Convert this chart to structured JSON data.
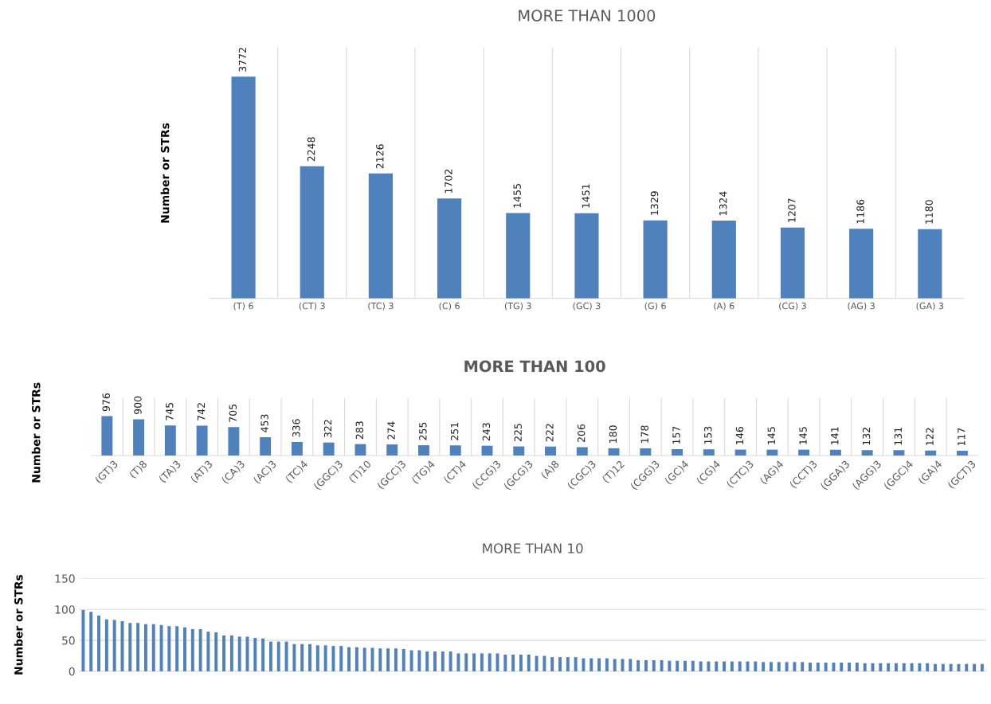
{
  "chart_data": [
    {
      "type": "bar",
      "title": "MORE THAN 1000",
      "ylabel": "Number or STRs",
      "categories": [
        "(T) 6",
        "(CT) 3",
        "(TC) 3",
        "(C) 6",
        "(TG) 3",
        "(GC) 3",
        "(G) 6",
        "(A) 6",
        "(CG) 3",
        "(AG) 3",
        "(GA) 3"
      ],
      "values": [
        3772,
        2248,
        2126,
        1702,
        1455,
        1451,
        1329,
        1324,
        1207,
        1186,
        1180
      ],
      "color": "#4f81bd",
      "data_labels": true,
      "grid": "x",
      "tick_labels": "x"
    },
    {
      "type": "bar",
      "title": "MORE THAN 100",
      "ylabel": "Number or STRs",
      "categories": [
        "(GT)3",
        "(T)8",
        "(TA)3",
        "(AT)3",
        "(CA)3",
        "(AC)3",
        "(TC)4",
        "(GGC)3",
        "(T)10",
        "(GCC)3",
        "(TG)4",
        "(CT)4",
        "(CCG)3",
        "(GCG)3",
        "(A)8",
        "(CGC)3",
        "(T)12",
        "(CGG)3",
        "(GC)4",
        "(CG)4",
        "(CTC)3",
        "(AG)4",
        "(CCT)3",
        "(GGA)3",
        "(AGG)3",
        "(GGC)4",
        "(GA)4",
        "(GCT)3"
      ],
      "values": [
        976,
        900,
        745,
        742,
        705,
        453,
        336,
        322,
        283,
        274,
        255,
        251,
        243,
        225,
        222,
        206,
        180,
        178,
        157,
        153,
        146,
        145,
        145,
        141,
        132,
        131,
        122,
        117
      ],
      "color": "#4f81bd",
      "data_labels": true,
      "grid": "x",
      "tick_labels": "x"
    },
    {
      "type": "bar",
      "title": "MORE THAN 10",
      "ylabel": "Number or STRs",
      "categories": [
        null,
        null,
        null,
        null,
        null,
        null,
        null,
        null,
        null,
        null,
        null,
        null,
        null,
        null,
        null,
        null,
        null,
        null,
        null,
        null,
        null,
        null,
        null,
        null,
        null,
        null,
        null,
        null,
        null,
        null,
        null,
        null,
        null,
        null,
        null,
        null,
        null,
        null,
        null,
        null,
        null,
        null,
        null,
        null,
        null,
        null,
        null,
        null,
        null,
        null,
        null,
        null,
        null,
        null,
        null,
        null,
        null,
        null,
        null,
        null,
        null,
        null,
        null,
        null,
        null,
        null,
        null,
        null,
        null,
        null,
        null,
        null,
        null,
        null,
        null,
        null,
        null,
        null,
        null,
        null,
        null,
        null,
        null,
        null,
        null,
        null,
        null,
        null,
        null,
        null,
        null,
        null,
        null,
        null,
        null,
        null,
        null,
        null,
        null,
        null,
        null,
        null,
        null,
        null,
        null,
        null,
        null,
        null,
        null,
        null,
        null,
        null,
        null,
        null,
        null,
        null
      ],
      "values": [
        99,
        96,
        90,
        84,
        83,
        81,
        78,
        78,
        76,
        76,
        75,
        73,
        73,
        71,
        68,
        68,
        64,
        63,
        58,
        58,
        56,
        56,
        54,
        53,
        48,
        48,
        48,
        44,
        44,
        44,
        42,
        42,
        41,
        41,
        39,
        39,
        38,
        38,
        37,
        37,
        37,
        36,
        34,
        34,
        32,
        32,
        32,
        32,
        29,
        29,
        29,
        29,
        29,
        29,
        27,
        27,
        27,
        27,
        25,
        25,
        23,
        23,
        23,
        23,
        21,
        21,
        21,
        21,
        20,
        20,
        20,
        18,
        18,
        18,
        18,
        17,
        17,
        17,
        17,
        16,
        16,
        16,
        16,
        16,
        16,
        16,
        16,
        15,
        15,
        15,
        15,
        15,
        15,
        14,
        14,
        14,
        14,
        14,
        14,
        14,
        13,
        13,
        13,
        13,
        13,
        13,
        13,
        13,
        13,
        12,
        12,
        12,
        12,
        12,
        12,
        12
      ],
      "color": "#4f81bd",
      "ylim": [
        0,
        150
      ],
      "yticks": [
        0,
        50,
        100,
        150
      ],
      "grid": "y",
      "tick_labels": "y"
    }
  ]
}
